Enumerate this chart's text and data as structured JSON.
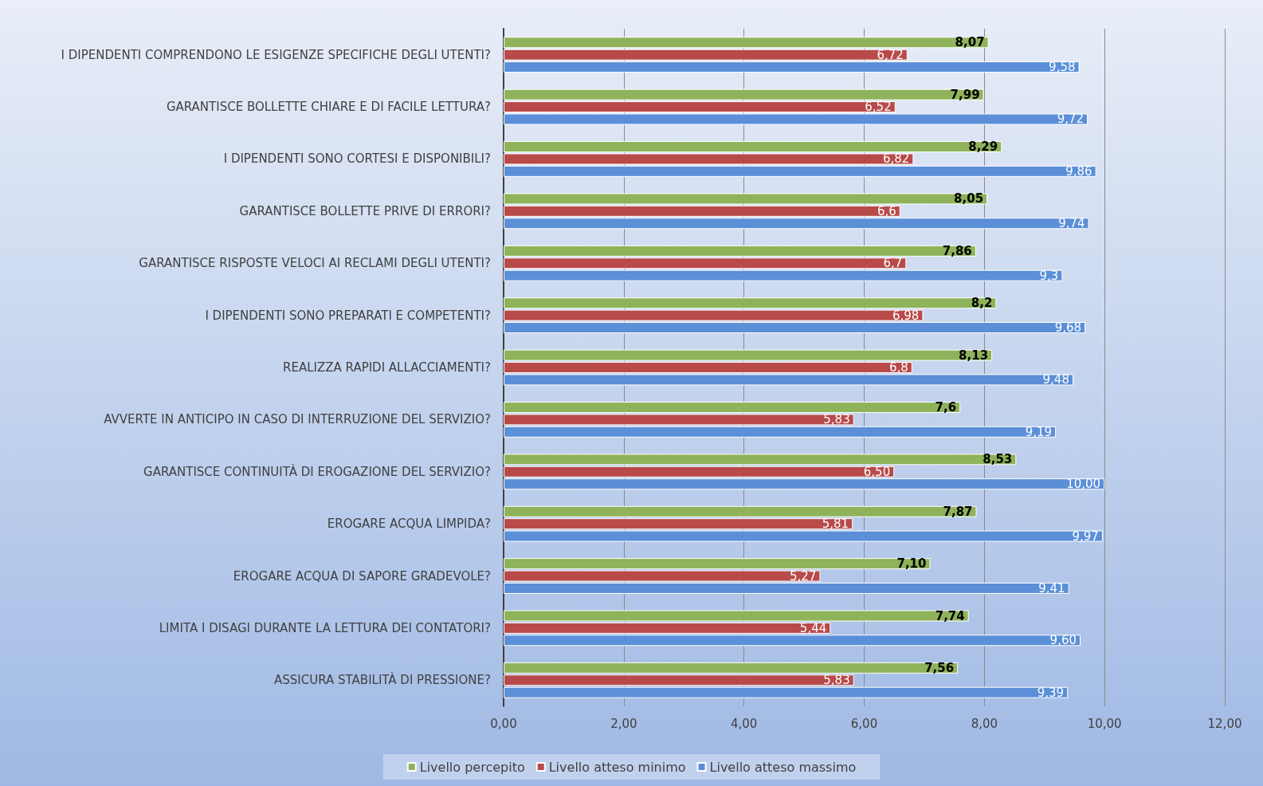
{
  "chart_data": {
    "type": "bar",
    "orientation": "horizontal",
    "categories": [
      "I DIPENDENTI COMPRENDONO LE ESIGENZE SPECIFICHE DEGLI UTENTI?",
      "GARANTISCE BOLLETTE CHIARE E DI FACILE LETTURA?",
      "I DIPENDENTI SONO CORTESI E DISPONIBILI?",
      "GARANTISCE BOLLETTE PRIVE DI ERRORI?",
      "GARANTISCE RISPOSTE VELOCI AI RECLAMI DEGLI UTENTI?",
      "I DIPENDENTI SONO PREPARATI E COMPETENTI?",
      "REALIZZA RAPIDI ALLACCIAMENTI?",
      "AVVERTE IN ANTICIPO IN CASO DI INTERRUZIONE DEL SERVIZIO?",
      "GARANTISCE CONTINUITÀ DI EROGAZIONE DEL SERVIZIO?",
      "EROGARE ACQUA LIMPIDA?",
      "EROGARE ACQUA DI SAPORE GRADEVOLE?",
      "LIMITA I DISAGI DURANTE LA LETTURA DEI CONTATORI?",
      "ASSICURA STABILITÀ DI PRESSIONE?"
    ],
    "series": [
      {
        "name": "Livello percepito",
        "color": "#8fb35a",
        "values": [
          8.07,
          7.99,
          8.29,
          8.05,
          7.86,
          8.2,
          8.13,
          7.6,
          8.53,
          7.87,
          7.1,
          7.74,
          7.56
        ],
        "value_labels": [
          "8,07",
          "7,99",
          "8,29",
          "8,05",
          "7,86",
          "8,2",
          "8,13",
          "7,6",
          "8,53",
          "7,87",
          "7,10",
          "7,74",
          "7,56"
        ]
      },
      {
        "name": "Livello atteso minimo",
        "color": "#b84a4a",
        "values": [
          6.72,
          6.52,
          6.82,
          6.6,
          6.7,
          6.98,
          6.8,
          5.83,
          6.5,
          5.81,
          5.27,
          5.44,
          5.83
        ],
        "value_labels": [
          "6,72",
          "6,52",
          "6,82",
          "6,6",
          "6,7",
          "6,98",
          "6,8",
          "5,83",
          "6,50",
          "5,81",
          "5,27",
          "5,44",
          "5,83"
        ]
      },
      {
        "name": "Livello atteso massimo",
        "color": "#5b8fd8",
        "values": [
          9.58,
          9.72,
          9.86,
          9.74,
          9.3,
          9.68,
          9.48,
          9.19,
          10.0,
          9.97,
          9.41,
          9.6,
          9.39
        ],
        "value_labels": [
          "9,58",
          "9,72",
          "9,86",
          "9,74",
          "9,3",
          "9,68",
          "9,48",
          "9,19",
          "10,00",
          "9,97",
          "9,41",
          "9,60",
          "9,39"
        ]
      }
    ],
    "xlim": [
      0,
      12
    ],
    "xticks": [
      {
        "value": 0,
        "label": "0,00"
      },
      {
        "value": 2,
        "label": "2,00"
      },
      {
        "value": 4,
        "label": "4,00"
      },
      {
        "value": 6,
        "label": "6,00"
      },
      {
        "value": 8,
        "label": "8,00"
      },
      {
        "value": 10,
        "label": "10,00"
      },
      {
        "value": 12,
        "label": "12,00"
      }
    ],
    "grid": "x",
    "legend": "bottom"
  }
}
